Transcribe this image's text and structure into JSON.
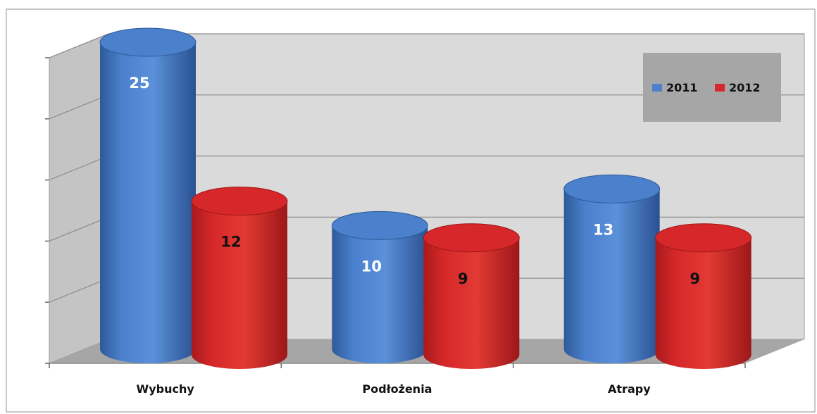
{
  "chart_data": {
    "type": "bar",
    "bar_shape": "cylinder-3d",
    "categories": [
      "Wybuchy",
      "Podłożenia",
      "Atrapy"
    ],
    "series": [
      {
        "name": "2011",
        "values": [
          25,
          10,
          13
        ],
        "color": "#4a80cc",
        "label_color": "#ffffff"
      },
      {
        "name": "2012",
        "values": [
          12,
          9,
          9
        ],
        "color": "#d6282a",
        "label_color": "#111111"
      }
    ],
    "title": "",
    "xlabel": "",
    "ylabel": "",
    "ylim": [
      0,
      25
    ],
    "grid": true,
    "legend_position": "top-right",
    "colors": {
      "wall": "#dadada",
      "floor": "#a6a6a6",
      "legend_bg": "#a6a6a6",
      "grid": "#8c8c8c"
    }
  }
}
